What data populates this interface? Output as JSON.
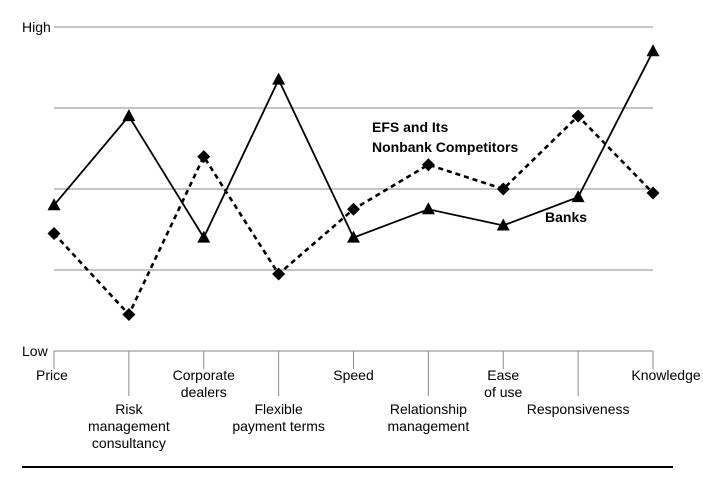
{
  "chart_data": {
    "type": "line",
    "y_axis_top_label": "High",
    "y_axis_bottom_label": "Low",
    "ylim": [
      0,
      4
    ],
    "grid": true,
    "categories": [
      [
        "Price"
      ],
      [
        "Risk",
        "management",
        "consultancy"
      ],
      [
        "Corporate",
        "dealers"
      ],
      [
        "Flexible",
        "payment terms"
      ],
      [
        "Speed"
      ],
      [
        "Relationship",
        "management"
      ],
      [
        "Ease",
        "of use"
      ],
      [
        "Responsiveness"
      ],
      [
        "Knowledge"
      ]
    ],
    "series": [
      {
        "name": "Banks",
        "label_lines": [
          "Banks"
        ],
        "style": "solid",
        "marker": "triangle",
        "values": [
          1.8,
          2.9,
          1.4,
          3.35,
          1.4,
          1.75,
          1.55,
          1.9,
          3.7
        ]
      },
      {
        "name": "EFS and Its Nonbank Competitors",
        "label_lines": [
          "EFS and Its",
          "Nonbank Competitors"
        ],
        "style": "dashed",
        "marker": "diamond",
        "values": [
          1.45,
          0.45,
          2.4,
          0.95,
          1.75,
          2.3,
          2.0,
          2.9,
          1.95
        ]
      }
    ]
  }
}
